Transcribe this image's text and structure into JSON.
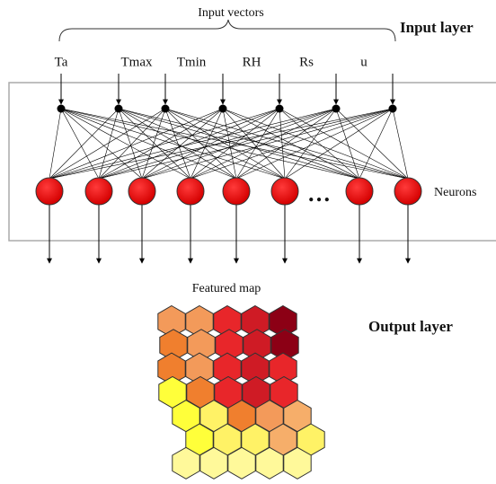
{
  "header": {
    "input_vectors": "Input vectors",
    "input_layer": "Input layer"
  },
  "inputs": [
    "Ta",
    "Tmax",
    "Tmin",
    "RH",
    "Rs",
    "u"
  ],
  "neurons": {
    "label": "Neurons",
    "ellipsis": "…"
  },
  "feature_map": {
    "title": "Featured map"
  },
  "output_layer": "Output layer"
}
